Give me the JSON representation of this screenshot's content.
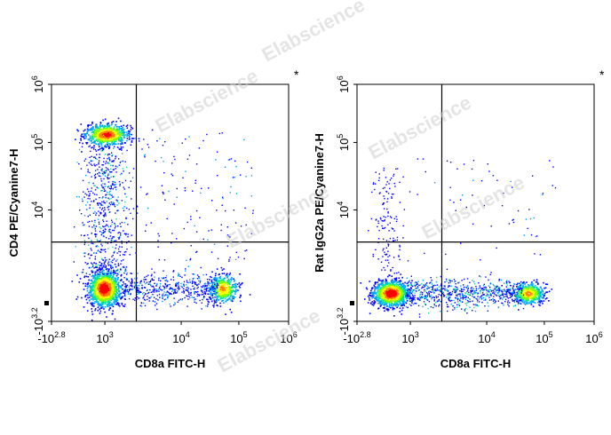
{
  "watermark": "Elabscience",
  "chart_data": [
    {
      "type": "scatter",
      "plot_style": "density dot plot (pseudocolor, blue-green-yellow-red)",
      "xlabel": "CD8a FITC-H",
      "ylabel": "CD4 PE/Cyanine7-H",
      "x_scale": "biexponential",
      "y_scale": "biexponential",
      "xlim_labels": [
        "-10^2.8",
        "10^6"
      ],
      "ylim_labels": [
        "-10^3.2",
        "10^6"
      ],
      "x_ticks": [
        {
          "base": "-10",
          "exp": "2.8"
        },
        {
          "base": "10",
          "exp": "3"
        },
        {
          "base": "10",
          "exp": "4"
        },
        {
          "base": "10",
          "exp": "5"
        },
        {
          "base": "10",
          "exp": "6"
        }
      ],
      "y_ticks": [
        {
          "base": "10",
          "exp": "6"
        },
        {
          "base": "10",
          "exp": "5"
        },
        {
          "base": "10",
          "exp": "4"
        },
        {
          "base": "-10",
          "exp": "3.2"
        }
      ],
      "quadrant_gate": {
        "x": 2600,
        "y": 2600
      },
      "corner_mark": "*",
      "populations": [
        {
          "name": "CD4+ CD8-",
          "center": [
            600,
            130000
          ],
          "relative_density": "high"
        },
        {
          "name": "CD4- CD8-",
          "center": [
            500,
            -100
          ],
          "relative_density": "high"
        },
        {
          "name": "CD4- CD8+",
          "center": [
            50000,
            -100
          ],
          "relative_density": "medium"
        }
      ]
    },
    {
      "type": "scatter",
      "plot_style": "density dot plot (pseudocolor, blue-green-yellow-red)",
      "xlabel": "CD8a FITC-H",
      "ylabel": "Rat IgG2a PE/Cyanine7-H",
      "x_scale": "biexponential",
      "y_scale": "biexponential",
      "xlim_labels": [
        "-10^2.8",
        "10^6"
      ],
      "ylim_labels": [
        "-10^3.2",
        "10^6"
      ],
      "x_ticks": [
        {
          "base": "-10",
          "exp": "2.8"
        },
        {
          "base": "10",
          "exp": "3"
        },
        {
          "base": "10",
          "exp": "4"
        },
        {
          "base": "10",
          "exp": "5"
        },
        {
          "base": "10",
          "exp": "6"
        }
      ],
      "y_ticks": [
        {
          "base": "10",
          "exp": "6"
        },
        {
          "base": "10",
          "exp": "5"
        },
        {
          "base": "10",
          "exp": "4"
        },
        {
          "base": "-10",
          "exp": "3.2"
        }
      ],
      "quadrant_gate": {
        "x": 2600,
        "y": 2600
      },
      "corner_mark": "*",
      "populations": [
        {
          "name": "CD8- (isotype)",
          "center": [
            500,
            -100
          ],
          "relative_density": "high"
        },
        {
          "name": "CD8+ (isotype)",
          "center": [
            50000,
            -100
          ],
          "relative_density": "medium"
        }
      ]
    }
  ],
  "colors": {
    "density_scale": [
      "#0000ff",
      "#00a0ff",
      "#00e0a0",
      "#7fff00",
      "#ffff00",
      "#ff8000",
      "#ff0000"
    ],
    "axis": "#000000",
    "gate": "#000000",
    "watermark": "#cfcfcf"
  }
}
